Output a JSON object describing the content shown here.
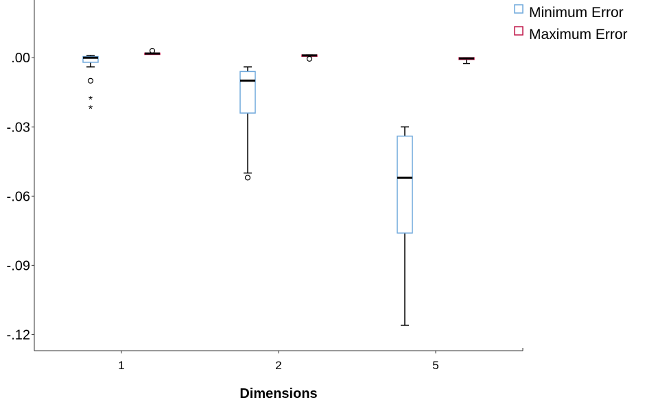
{
  "chart_data": {
    "type": "boxplot",
    "title": "",
    "xlabel": "Dimensions",
    "ylabel": "",
    "categories": [
      "1",
      "2",
      "5"
    ],
    "ylim": [
      -0.127,
      0.025
    ],
    "yticks": [
      0.0,
      -0.03,
      -0.06,
      -0.09,
      -0.12
    ],
    "ytick_labels": [
      ".00",
      "-.03",
      "-.06",
      "-.09",
      "-.12"
    ],
    "legend": {
      "position": "top-right",
      "entries": [
        "Minimum Error",
        "Maximum Error"
      ]
    },
    "series": [
      {
        "name": "Minimum Error",
        "color": "#6fa8dc",
        "boxes": [
          {
            "category": "1",
            "whisker_low": -0.004,
            "q1": -0.002,
            "median": 0.0,
            "q3": 0.0005,
            "whisker_high": 0.001,
            "outliers": [
              {
                "value": -0.01,
                "kind": "circle"
              }
            ],
            "extremes": [
              {
                "value": -0.018,
                "kind": "star"
              },
              {
                "value": -0.022,
                "kind": "star"
              }
            ]
          },
          {
            "category": "2",
            "whisker_low": -0.05,
            "q1": -0.024,
            "median": -0.01,
            "q3": -0.006,
            "whisker_high": -0.004,
            "outliers": [
              {
                "value": -0.052,
                "kind": "circle"
              }
            ],
            "extremes": []
          },
          {
            "category": "5",
            "whisker_low": -0.116,
            "q1": -0.076,
            "median": -0.052,
            "q3": -0.034,
            "whisker_high": -0.03,
            "outliers": [],
            "extremes": []
          }
        ]
      },
      {
        "name": "Maximum Error",
        "color": "#c0184a",
        "boxes": [
          {
            "category": "1",
            "whisker_low": 0.0015,
            "q1": 0.0015,
            "median": 0.0018,
            "q3": 0.002,
            "whisker_high": 0.002,
            "outliers": [
              {
                "value": 0.003,
                "kind": "circle"
              }
            ],
            "extremes": []
          },
          {
            "category": "2",
            "whisker_low": 0.0008,
            "q1": 0.0008,
            "median": 0.001,
            "q3": 0.0012,
            "whisker_high": 0.0012,
            "outliers": [
              {
                "value": -0.0005,
                "kind": "circle"
              }
            ],
            "extremes": []
          },
          {
            "category": "5",
            "whisker_low": -0.0025,
            "q1": -0.0008,
            "median": -0.0003,
            "q3": 0.0,
            "whisker_high": 0.0,
            "outliers": [],
            "extremes": []
          }
        ]
      }
    ]
  }
}
